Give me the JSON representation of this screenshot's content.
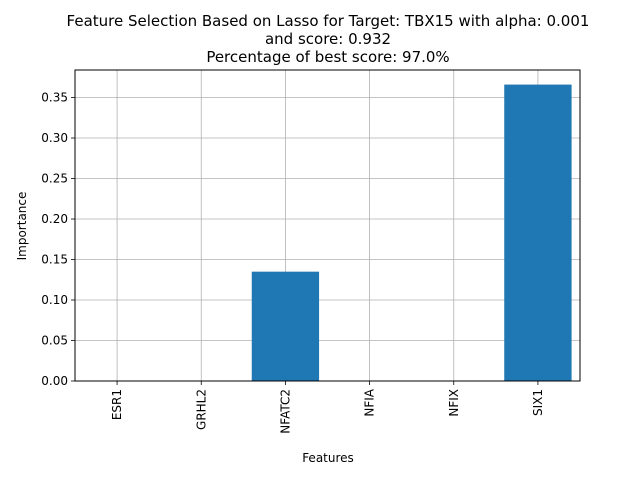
{
  "chart_data": {
    "type": "bar",
    "title_lines": [
      "Feature Selection Based on Lasso for Target: TBX15 with alpha: 0.001",
      "and score: 0.932",
      "Percentage of best score: 97.0%"
    ],
    "xlabel": "Features",
    "ylabel": "Importance",
    "categories": [
      "ESR1",
      "GRHL2",
      "NFATC2",
      "NFIA",
      "NFIX",
      "SIX1"
    ],
    "values": [
      0.0,
      0.0,
      0.135,
      0.0,
      0.0,
      0.366
    ],
    "ylim": [
      0,
      0.384
    ],
    "yticks": [
      0.0,
      0.05,
      0.1,
      0.15,
      0.2,
      0.25,
      0.3,
      0.35
    ],
    "ytick_labels": [
      "0.00",
      "0.05",
      "0.10",
      "0.15",
      "0.20",
      "0.25",
      "0.30",
      "0.35"
    ],
    "grid": true,
    "bar_color": "#1f77b4",
    "grid_color": "#b0b0b0"
  }
}
